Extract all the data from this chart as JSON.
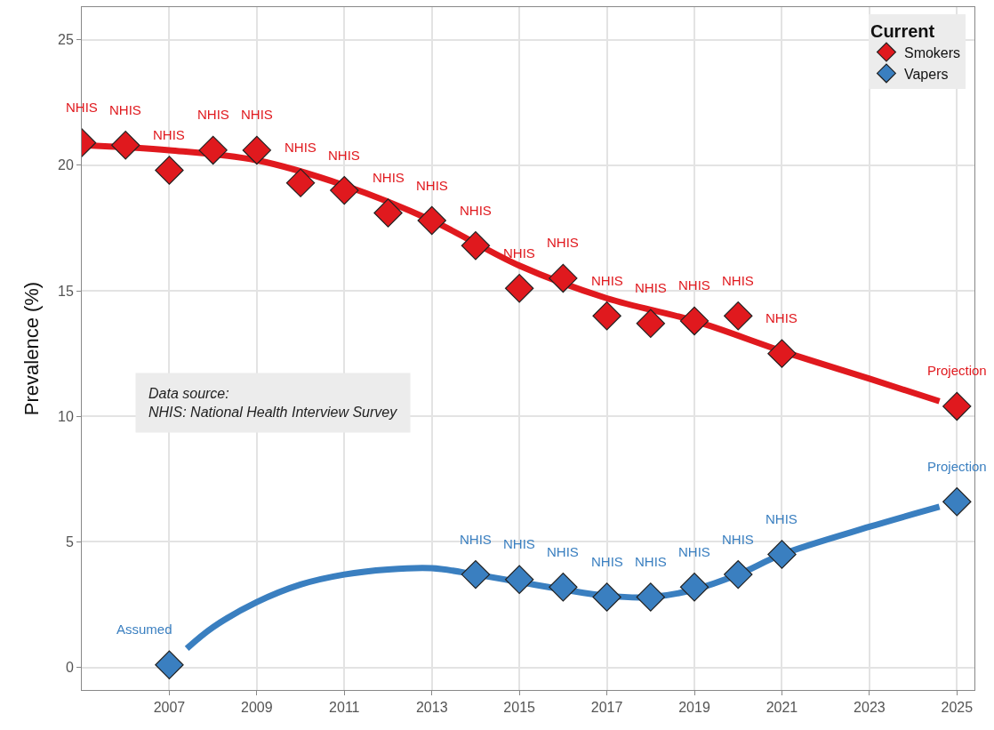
{
  "chart_data": {
    "type": "scatter",
    "ylabel": "Prevalence (%)",
    "legend_title": "Current",
    "legend": "top right",
    "grid": true,
    "marker": "diamond",
    "xlim": [
      2005,
      2025.4
    ],
    "xticks": [
      2007,
      2009,
      2011,
      2013,
      2015,
      2017,
      2019,
      2021,
      2023,
      2025
    ],
    "ylim": [
      -0.9,
      26.3
    ],
    "yticks": [
      0,
      5,
      10,
      15,
      20,
      25
    ],
    "series": [
      {
        "type": "line",
        "marker": "none",
        "color": "#e0191e",
        "x": [
          2005,
          2007,
          2009,
          2011,
          2013,
          2015,
          2017,
          2019,
          2021,
          2023,
          2024.6
        ],
        "values": [
          20.8,
          20.6,
          20.2,
          19.2,
          17.8,
          16.0,
          14.7,
          13.8,
          12.6,
          11.5,
          10.6
        ]
      },
      {
        "type": "line",
        "marker": "none",
        "color": "#3a7fc0",
        "x": [
          2007.4,
          2008,
          2009,
          2010,
          2011,
          2012,
          2013,
          2014,
          2015,
          2016,
          2017,
          2018,
          2019,
          2020,
          2021,
          2023,
          2024.6
        ],
        "values": [
          0.75,
          1.6,
          2.6,
          3.3,
          3.7,
          3.9,
          3.95,
          3.7,
          3.4,
          3.1,
          2.85,
          2.8,
          3.1,
          3.7,
          4.5,
          5.6,
          6.4
        ]
      },
      {
        "name": "Smokers",
        "color": "#e0191e",
        "x": [
          2005,
          2006,
          2007,
          2008,
          2009,
          2010,
          2011,
          2012,
          2013,
          2014,
          2015,
          2016,
          2017,
          2018,
          2019,
          2020,
          2021,
          2025
        ],
        "values": [
          20.9,
          20.8,
          19.8,
          20.6,
          20.6,
          19.3,
          19.0,
          18.1,
          17.8,
          16.8,
          15.1,
          15.5,
          14.0,
          13.7,
          13.8,
          14.0,
          12.5,
          10.4
        ],
        "value_labels": [
          "NHIS",
          "NHIS",
          "NHIS",
          "NHIS",
          "NHIS",
          "NHIS",
          "NHIS",
          "NHIS",
          "NHIS",
          "NHIS",
          "NHIS",
          "NHIS",
          "NHIS",
          "NHIS",
          "NHIS",
          "NHIS",
          "NHIS",
          "Projection"
        ]
      },
      {
        "name": "Vapers",
        "color": "#3a7fc0",
        "x": [
          2007,
          2014,
          2015,
          2016,
          2017,
          2018,
          2019,
          2020,
          2021,
          2025
        ],
        "values": [
          0.1,
          3.7,
          3.5,
          3.2,
          2.8,
          2.8,
          3.2,
          3.7,
          4.5,
          6.6
        ],
        "value_labels": [
          "Assumed",
          "NHIS",
          "NHIS",
          "NHIS",
          "NHIS",
          "NHIS",
          "NHIS",
          "NHIS",
          "NHIS",
          "Projection"
        ]
      }
    ],
    "annotations": [
      "Data source:\nNHIS: National Health Interview Survey"
    ]
  }
}
